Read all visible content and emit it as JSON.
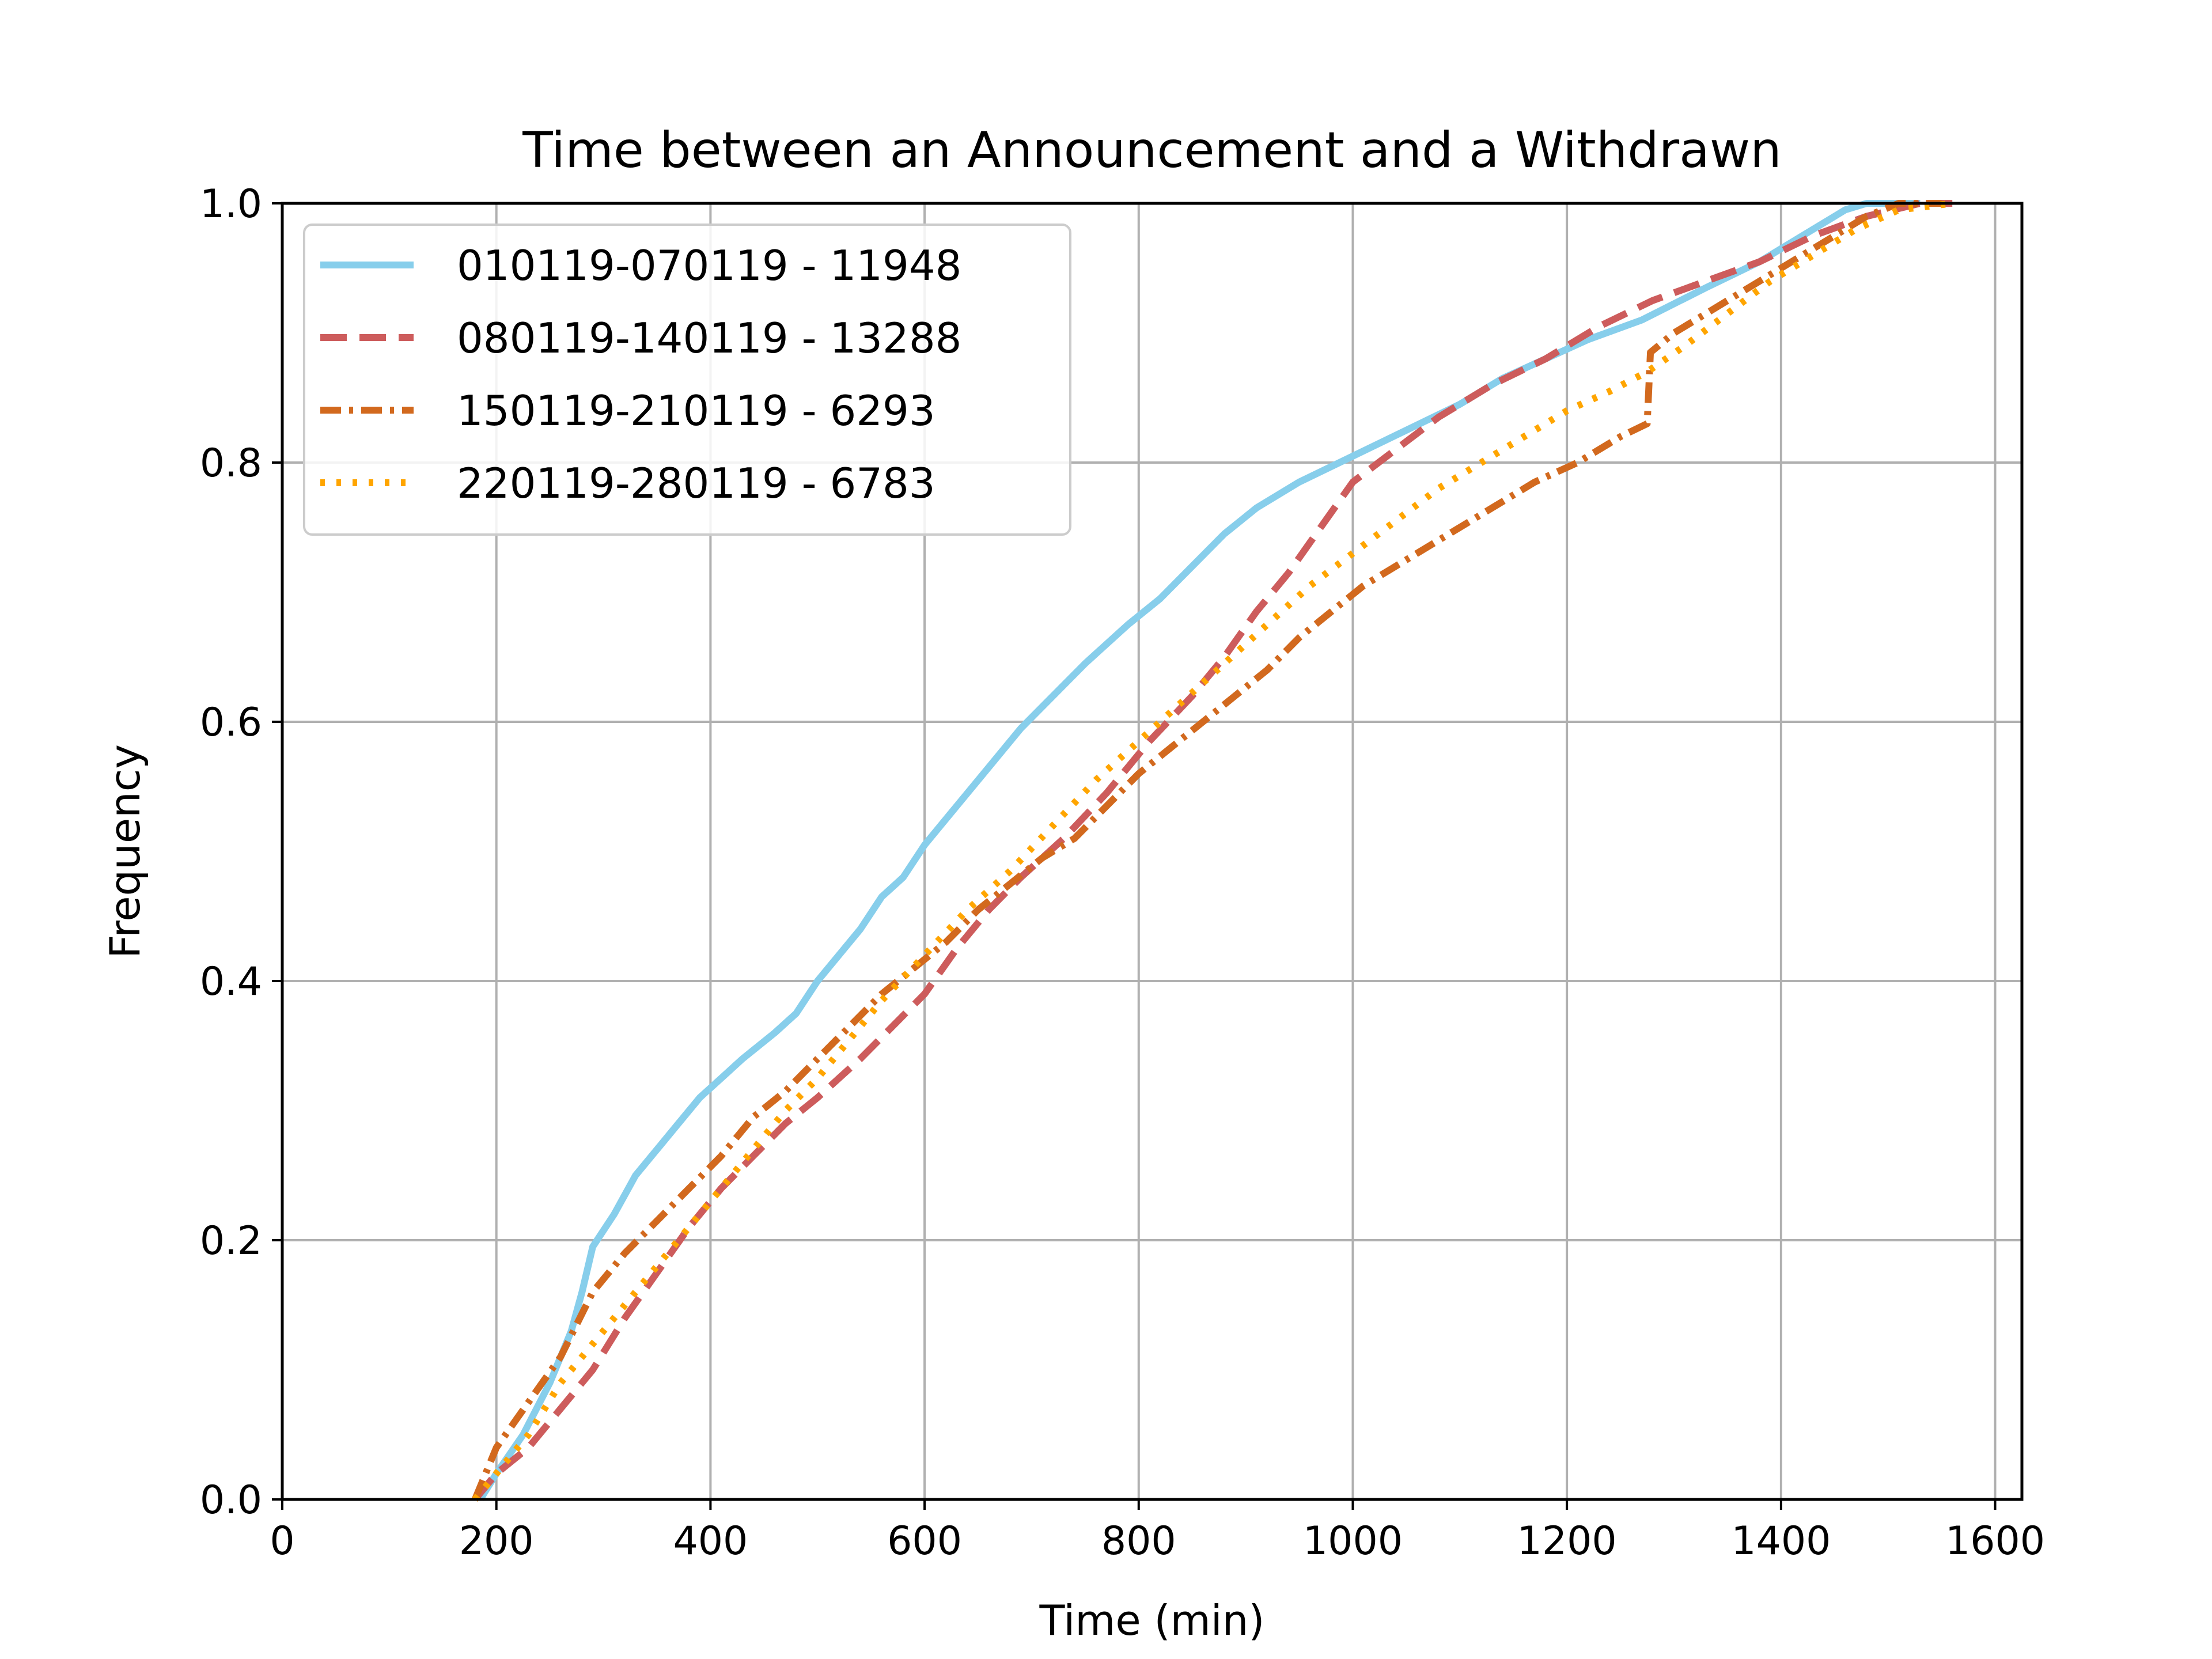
{
  "chart_data": {
    "type": "line",
    "title": "Time between an Announcement and a Withdrawn",
    "xlabel": "Time (min)",
    "ylabel": "Frequency",
    "xlim": [
      0,
      1625
    ],
    "ylim": [
      0,
      1.0
    ],
    "xticks": [
      0,
      200,
      400,
      600,
      800,
      1000,
      1200,
      1400,
      1600
    ],
    "xtick_labels": [
      "0",
      "200",
      "400",
      "600",
      "800",
      "1000",
      "1200",
      "1400",
      "1600"
    ],
    "yticks": [
      0.0,
      0.2,
      0.4,
      0.6,
      0.8,
      1.0
    ],
    "ytick_labels": [
      "0.0",
      "0.2",
      "0.4",
      "0.6",
      "0.8",
      "1.0"
    ],
    "grid": true,
    "legend_position": "top-left",
    "series": [
      {
        "name": "010119-070119 - 11948",
        "color": "#87ceeb",
        "style": "solid",
        "points": [
          [
            185,
            0.0
          ],
          [
            200,
            0.02
          ],
          [
            225,
            0.05
          ],
          [
            250,
            0.09
          ],
          [
            270,
            0.13
          ],
          [
            280,
            0.16
          ],
          [
            290,
            0.195
          ],
          [
            310,
            0.22
          ],
          [
            320,
            0.235
          ],
          [
            330,
            0.25
          ],
          [
            350,
            0.27
          ],
          [
            370,
            0.29
          ],
          [
            390,
            0.31
          ],
          [
            410,
            0.325
          ],
          [
            430,
            0.34
          ],
          [
            460,
            0.36
          ],
          [
            480,
            0.375
          ],
          [
            500,
            0.4
          ],
          [
            520,
            0.42
          ],
          [
            540,
            0.44
          ],
          [
            560,
            0.465
          ],
          [
            580,
            0.48
          ],
          [
            600,
            0.505
          ],
          [
            630,
            0.535
          ],
          [
            660,
            0.565
          ],
          [
            690,
            0.595
          ],
          [
            720,
            0.62
          ],
          [
            750,
            0.645
          ],
          [
            790,
            0.675
          ],
          [
            820,
            0.695
          ],
          [
            850,
            0.72
          ],
          [
            880,
            0.745
          ],
          [
            910,
            0.765
          ],
          [
            950,
            0.785
          ],
          [
            1000,
            0.805
          ],
          [
            1050,
            0.825
          ],
          [
            1100,
            0.845
          ],
          [
            1140,
            0.865
          ],
          [
            1180,
            0.88
          ],
          [
            1220,
            0.895
          ],
          [
            1270,
            0.91
          ],
          [
            1330,
            0.935
          ],
          [
            1380,
            0.955
          ],
          [
            1420,
            0.975
          ],
          [
            1460,
            0.995
          ],
          [
            1480,
            1.0
          ],
          [
            1530,
            1.0
          ]
        ]
      },
      {
        "name": "080119-140119 - 13288",
        "color": "#cd5c5c",
        "style": "dashed",
        "points": [
          [
            180,
            0.0
          ],
          [
            200,
            0.02
          ],
          [
            230,
            0.04
          ],
          [
            260,
            0.07
          ],
          [
            290,
            0.1
          ],
          [
            320,
            0.14
          ],
          [
            350,
            0.175
          ],
          [
            380,
            0.21
          ],
          [
            410,
            0.24
          ],
          [
            440,
            0.265
          ],
          [
            470,
            0.29
          ],
          [
            500,
            0.31
          ],
          [
            540,
            0.34
          ],
          [
            570,
            0.365
          ],
          [
            600,
            0.39
          ],
          [
            630,
            0.425
          ],
          [
            660,
            0.455
          ],
          [
            690,
            0.48
          ],
          [
            730,
            0.51
          ],
          [
            770,
            0.545
          ],
          [
            810,
            0.585
          ],
          [
            850,
            0.62
          ],
          [
            880,
            0.65
          ],
          [
            910,
            0.685
          ],
          [
            940,
            0.715
          ],
          [
            970,
            0.75
          ],
          [
            1000,
            0.785
          ],
          [
            1040,
            0.81
          ],
          [
            1080,
            0.835
          ],
          [
            1130,
            0.86
          ],
          [
            1180,
            0.88
          ],
          [
            1230,
            0.905
          ],
          [
            1280,
            0.925
          ],
          [
            1330,
            0.94
          ],
          [
            1380,
            0.955
          ],
          [
            1430,
            0.975
          ],
          [
            1480,
            0.99
          ],
          [
            1530,
            1.0
          ],
          [
            1560,
            1.0
          ]
        ]
      },
      {
        "name": "150119-210119 - 6293",
        "color": "#d2691e",
        "style": "dashdot",
        "points": [
          [
            180,
            0.0
          ],
          [
            200,
            0.04
          ],
          [
            230,
            0.075
          ],
          [
            260,
            0.11
          ],
          [
            290,
            0.16
          ],
          [
            320,
            0.19
          ],
          [
            350,
            0.215
          ],
          [
            380,
            0.24
          ],
          [
            410,
            0.265
          ],
          [
            440,
            0.295
          ],
          [
            470,
            0.315
          ],
          [
            500,
            0.34
          ],
          [
            530,
            0.365
          ],
          [
            560,
            0.39
          ],
          [
            590,
            0.41
          ],
          [
            620,
            0.43
          ],
          [
            650,
            0.455
          ],
          [
            680,
            0.475
          ],
          [
            710,
            0.495
          ],
          [
            740,
            0.51
          ],
          [
            770,
            0.535
          ],
          [
            800,
            0.56
          ],
          [
            830,
            0.58
          ],
          [
            860,
            0.6
          ],
          [
            890,
            0.62
          ],
          [
            920,
            0.64
          ],
          [
            950,
            0.665
          ],
          [
            980,
            0.685
          ],
          [
            1010,
            0.705
          ],
          [
            1050,
            0.725
          ],
          [
            1090,
            0.745
          ],
          [
            1130,
            0.765
          ],
          [
            1170,
            0.785
          ],
          [
            1210,
            0.8
          ],
          [
            1250,
            0.82
          ],
          [
            1275,
            0.83
          ],
          [
            1278,
            0.885
          ],
          [
            1300,
            0.9
          ],
          [
            1330,
            0.915
          ],
          [
            1360,
            0.93
          ],
          [
            1390,
            0.945
          ],
          [
            1420,
            0.96
          ],
          [
            1450,
            0.975
          ],
          [
            1480,
            0.99
          ],
          [
            1510,
            1.0
          ],
          [
            1550,
            1.0
          ]
        ]
      },
      {
        "name": "220119-280119 - 6783",
        "color": "#ffa500",
        "style": "dotted",
        "points": [
          [
            180,
            0.0
          ],
          [
            200,
            0.02
          ],
          [
            230,
            0.05
          ],
          [
            260,
            0.09
          ],
          [
            290,
            0.12
          ],
          [
            320,
            0.15
          ],
          [
            350,
            0.18
          ],
          [
            380,
            0.21
          ],
          [
            410,
            0.24
          ],
          [
            440,
            0.27
          ],
          [
            470,
            0.3
          ],
          [
            500,
            0.325
          ],
          [
            530,
            0.355
          ],
          [
            560,
            0.385
          ],
          [
            600,
            0.42
          ],
          [
            640,
            0.455
          ],
          [
            680,
            0.485
          ],
          [
            720,
            0.52
          ],
          [
            760,
            0.555
          ],
          [
            800,
            0.585
          ],
          [
            840,
            0.615
          ],
          [
            880,
            0.645
          ],
          [
            920,
            0.675
          ],
          [
            960,
            0.705
          ],
          [
            1000,
            0.73
          ],
          [
            1040,
            0.755
          ],
          [
            1080,
            0.78
          ],
          [
            1120,
            0.8
          ],
          [
            1160,
            0.82
          ],
          [
            1200,
            0.84
          ],
          [
            1240,
            0.855
          ],
          [
            1275,
            0.87
          ],
          [
            1310,
            0.89
          ],
          [
            1350,
            0.915
          ],
          [
            1390,
            0.94
          ],
          [
            1430,
            0.96
          ],
          [
            1470,
            0.98
          ],
          [
            1510,
            0.995
          ],
          [
            1560,
            1.0
          ]
        ]
      }
    ]
  }
}
